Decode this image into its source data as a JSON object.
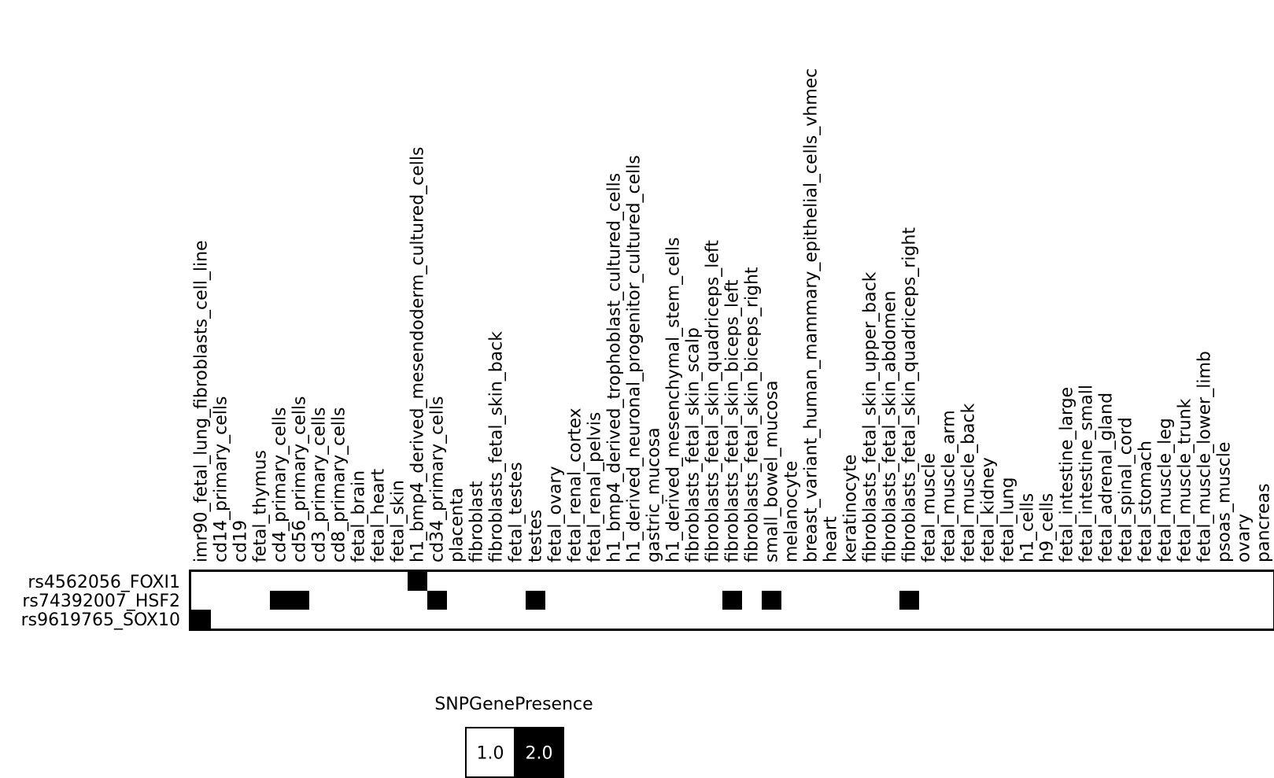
{
  "chart_data": {
    "type": "heatmap",
    "title": "",
    "xlabel": "",
    "ylabel": "",
    "columns": [
      "imr90_fetal_lung_fibroblasts_cell_line",
      "cd14_primary_cells",
      "cd19",
      "fetal_thymus",
      "cd4_primary_cells",
      "cd56_primary_cells",
      "cd3_primary_cells",
      "cd8_primary_cells",
      "fetal_brain",
      "fetal_heart",
      "fetal_skin",
      "h1_bmp4_derived_mesendoderm_cultured_cells",
      "cd34_primary_cells",
      "placenta",
      "fibroblast",
      "fibroblasts_fetal_skin_back",
      "fetal_testes",
      "testes",
      "fetal_ovary",
      "fetal_renal_cortex",
      "fetal_renal_pelvis",
      "h1_bmp4_derived_trophoblast_cultured_cells",
      "h1_derived_neuronal_progenitor_cultured_cells",
      "gastric_mucosa",
      "h1_derived_mesenchymal_stem_cells",
      "fibroblasts_fetal_skin_scalp",
      "fibroblasts_fetal_skin_quadriceps_left",
      "fibroblasts_fetal_skin_biceps_left",
      "fibroblasts_fetal_skin_biceps_right",
      "small_bowel_mucosa",
      "melanocyte",
      "breast_variant_human_mammary_epithelial_cells_vhmec",
      "heart",
      "keratinocyte",
      "fibroblasts_fetal_skin_upper_back",
      "fibroblasts_fetal_skin_abdomen",
      "fibroblasts_fetal_skin_quadriceps_right",
      "fetal_muscle",
      "fetal_muscle_arm",
      "fetal_muscle_back",
      "fetal_kidney",
      "fetal_lung",
      "h1_cells",
      "h9_cells",
      "fetal_intestine_large",
      "fetal_intestine_small",
      "fetal_adrenal_gland",
      "fetal_spinal_cord",
      "fetal_stomach",
      "fetal_muscle_leg",
      "fetal_muscle_trunk",
      "fetal_muscle_lower_limb",
      "psoas_muscle",
      "ovary",
      "pancreas"
    ],
    "rows": [
      "rs4562056_FOXI1",
      "rs74392007_HSF2",
      "rs9619765_SOX10"
    ],
    "values": [
      [
        1,
        1,
        1,
        1,
        1,
        1,
        1,
        1,
        1,
        1,
        1,
        2,
        1,
        1,
        1,
        1,
        1,
        1,
        1,
        1,
        1,
        1,
        1,
        1,
        1,
        1,
        1,
        1,
        1,
        1,
        1,
        1,
        1,
        1,
        1,
        1,
        1,
        1,
        1,
        1,
        1,
        1,
        1,
        1,
        1,
        1,
        1,
        1,
        1,
        1,
        1,
        1,
        1,
        1,
        1
      ],
      [
        1,
        1,
        1,
        1,
        2,
        2,
        1,
        1,
        1,
        1,
        1,
        1,
        2,
        1,
        1,
        1,
        1,
        2,
        1,
        1,
        1,
        1,
        1,
        1,
        1,
        1,
        1,
        2,
        1,
        2,
        1,
        1,
        1,
        1,
        1,
        1,
        2,
        1,
        1,
        1,
        1,
        1,
        1,
        1,
        1,
        1,
        1,
        1,
        1,
        1,
        1,
        1,
        1,
        1,
        1
      ],
      [
        2,
        1,
        1,
        1,
        1,
        1,
        1,
        1,
        1,
        1,
        1,
        1,
        1,
        1,
        1,
        1,
        1,
        1,
        1,
        1,
        1,
        1,
        1,
        1,
        1,
        1,
        1,
        1,
        1,
        1,
        1,
        1,
        1,
        1,
        1,
        1,
        1,
        1,
        1,
        1,
        1,
        1,
        1,
        1,
        1,
        1,
        1,
        1,
        1,
        1,
        1,
        1,
        1,
        1,
        1
      ]
    ],
    "colors": {
      "1.0": "#ffffff",
      "2.0": "#000000"
    },
    "legend": {
      "title": "SNPGenePresence",
      "placement": "bottom-center",
      "entries": [
        {
          "label": "1.0",
          "color": "#ffffff",
          "text_color": "#000000"
        },
        {
          "label": "2.0",
          "color": "#000000",
          "text_color": "#ffffff"
        }
      ]
    }
  }
}
